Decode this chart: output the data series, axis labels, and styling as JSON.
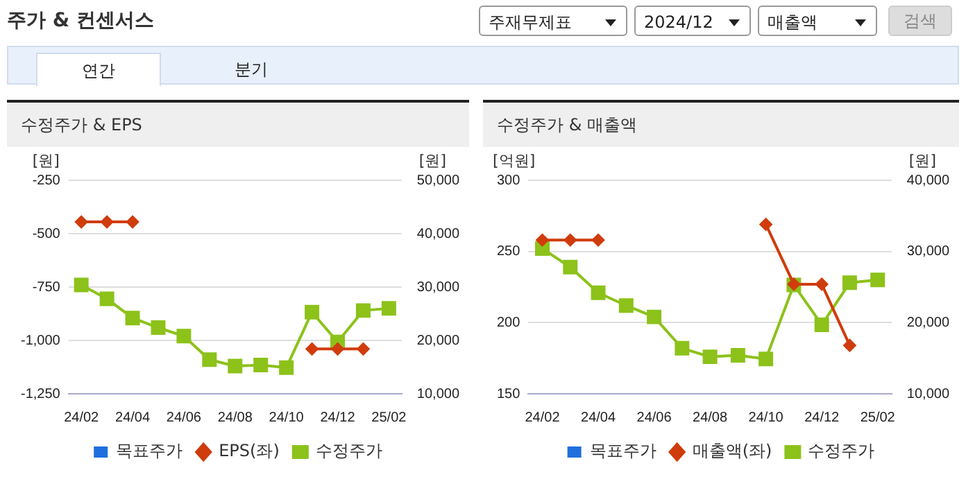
{
  "chart_data": [
    {
      "type": "other",
      "title": "주가 & 컨센서스",
      "annotations": [
        "주재무제표",
        "2024/12",
        "매출액",
        "검색",
        "연간",
        "분기"
      ]
    },
    {
      "type": "line",
      "title": "수정주가 & EPS",
      "ylabel": "[원]",
      "y2label": "[원]",
      "categories": [
        "24/02",
        null,
        "24/04",
        null,
        "24/06",
        null,
        "24/08",
        null,
        "24/10",
        null,
        "24/12",
        null,
        "25/02"
      ],
      "ylim": [
        -1250,
        -250
      ],
      "yticks": [
        {
          "value": -1250,
          "label": "-1,250"
        },
        {
          "value": -1000,
          "label": "-1,000"
        },
        -750,
        -500,
        -250
      ],
      "y2lim": [
        10000,
        50000
      ],
      "y2ticks": [
        {
          "value": 10000,
          "label": "10,000"
        },
        {
          "value": 20000,
          "label": "20,000"
        },
        {
          "value": 30000,
          "label": "30,000"
        },
        {
          "value": 40000,
          "label": "40,000"
        },
        {
          "value": 50000,
          "label": "50,000"
        }
      ],
      "grid": "y",
      "legend": "bottom",
      "series": [
        {
          "name": "목표주가",
          "type": "bar",
          "color": "#1f6fdd",
          "values": [
            null,
            null,
            null,
            null,
            null,
            null,
            null,
            null,
            null,
            null,
            null,
            null,
            null
          ]
        },
        {
          "name": "EPS(좌)",
          "type": "line",
          "marker": "diamond",
          "color": "#d03c0c",
          "values": [
            -445,
            -445,
            -445,
            null,
            null,
            null,
            null,
            null,
            null,
            -1040,
            -1040,
            -1040,
            null
          ]
        },
        {
          "name": "수정주가",
          "type": "line",
          "marker": "square",
          "axis": "y2",
          "color": "#8cc21a",
          "values": [
            30400,
            27800,
            24200,
            22400,
            20800,
            16400,
            15200,
            15400,
            14900,
            25300,
            19700,
            25600,
            26000
          ]
        }
      ]
    },
    {
      "type": "line",
      "title": "수정주가 & 매출액",
      "ylabel": "[억원]",
      "y2label": "[원]",
      "categories": [
        "24/02",
        null,
        "24/04",
        null,
        "24/06",
        null,
        "24/08",
        null,
        "24/10",
        null,
        "24/12",
        null,
        "25/02"
      ],
      "ylim": [
        150,
        300
      ],
      "yticks": [
        150,
        200,
        250,
        300
      ],
      "y2lim": [
        10000,
        40000
      ],
      "y2ticks": [
        {
          "value": 10000,
          "label": "10,000"
        },
        {
          "value": 20000,
          "label": "20,000"
        },
        {
          "value": 30000,
          "label": "30,000"
        },
        {
          "value": 40000,
          "label": "40,000"
        }
      ],
      "grid": "y",
      "legend": "bottom",
      "series": [
        {
          "name": "목표주가",
          "type": "bar",
          "color": "#1f6fdd",
          "values": [
            null,
            null,
            null,
            null,
            null,
            null,
            null,
            null,
            null,
            null,
            null,
            null,
            null
          ]
        },
        {
          "name": "매출액(좌)",
          "type": "line",
          "marker": "diamond",
          "color": "#d03c0c",
          "values": [
            258,
            258,
            258,
            null,
            null,
            null,
            null,
            null,
            269,
            227,
            227,
            184,
            null
          ]
        },
        {
          "name": "수정주가",
          "type": "line",
          "marker": "square",
          "axis": "y2",
          "color": "#8cc21a",
          "values": [
            30400,
            27800,
            24200,
            22400,
            20800,
            16400,
            15200,
            15400,
            14900,
            25300,
            19700,
            25600,
            26000
          ]
        }
      ]
    }
  ]
}
